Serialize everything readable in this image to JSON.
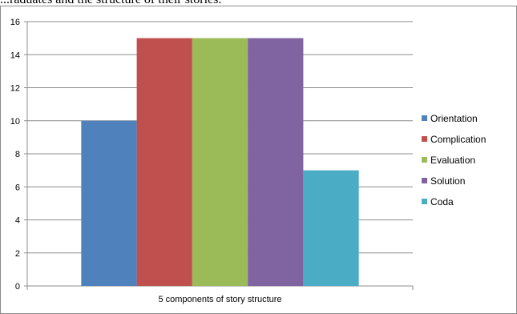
{
  "snippet_text": "...raduates and the structure of their stories.",
  "chart_data": {
    "type": "bar",
    "categories": [
      "5 components of story structure"
    ],
    "series": [
      {
        "name": "Orientation",
        "values": [
          10
        ],
        "color": "#4f81bd"
      },
      {
        "name": "Complication",
        "values": [
          15
        ],
        "color": "#c0504d"
      },
      {
        "name": "Evaluation",
        "values": [
          15
        ],
        "color": "#9bbb59"
      },
      {
        "name": "Solution",
        "values": [
          15
        ],
        "color": "#8064a2"
      },
      {
        "name": "Coda",
        "values": [
          7
        ],
        "color": "#4bacc6"
      }
    ],
    "xlabel": "",
    "ylabel": "",
    "ylim": [
      0,
      16
    ],
    "yticks": [
      0,
      2,
      4,
      6,
      8,
      10,
      12,
      14,
      16
    ],
    "grid": true,
    "legend": "right"
  }
}
